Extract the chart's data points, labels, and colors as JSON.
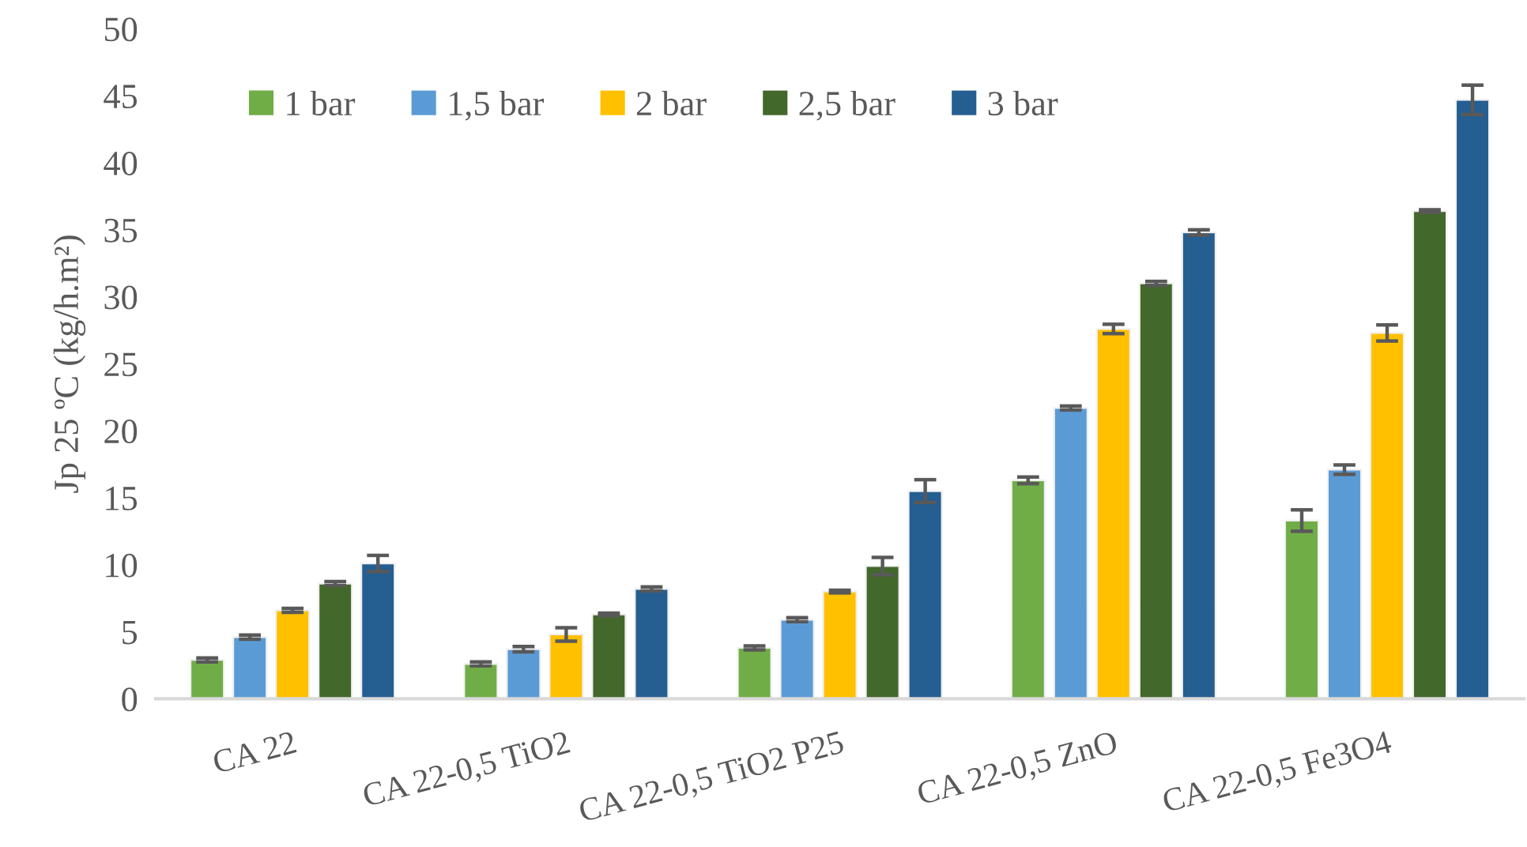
{
  "chart_data": {
    "type": "bar",
    "ylabel": "Jp 25 ºC (kg/h.m²)",
    "categories": [
      "CA 22",
      "CA 22-0,5 TiO2",
      "CA 22-0,5 TiO2 P25",
      "CA 22-0,5 ZnO",
      "CA 22-0,5 Fe3O4"
    ],
    "series": [
      {
        "name": "1 bar",
        "color": "#70ad47",
        "values": [
          2.9,
          2.6,
          3.8,
          16.3,
          13.3
        ],
        "errors": [
          0.15,
          0.15,
          0.15,
          0.25,
          0.8
        ]
      },
      {
        "name": "1,5 bar",
        "color": "#5b9bd5",
        "values": [
          4.6,
          3.7,
          5.9,
          21.7,
          17.1
        ],
        "errors": [
          0.15,
          0.2,
          0.15,
          0.15,
          0.35
        ]
      },
      {
        "name": "2 bar",
        "color": "#ffc000",
        "values": [
          6.6,
          4.8,
          8.0,
          27.6,
          27.3
        ],
        "errors": [
          0.15,
          0.5,
          0.1,
          0.35,
          0.6
        ]
      },
      {
        "name": "2,5 bar",
        "color": "#43682b",
        "values": [
          8.6,
          6.3,
          9.9,
          31.0,
          36.4
        ],
        "errors": [
          0.15,
          0.1,
          0.65,
          0.15,
          0.1
        ]
      },
      {
        "name": "3 bar",
        "color": "#255e91",
        "values": [
          10.1,
          8.2,
          15.5,
          34.8,
          44.7
        ],
        "errors": [
          0.6,
          0.15,
          0.85,
          0.2,
          1.1
        ]
      }
    ],
    "ylim": [
      0,
      50
    ],
    "yticks": [
      0,
      5,
      10,
      15,
      20,
      25,
      30,
      35,
      40,
      45,
      50
    ],
    "grid": false,
    "legend": "top left"
  }
}
